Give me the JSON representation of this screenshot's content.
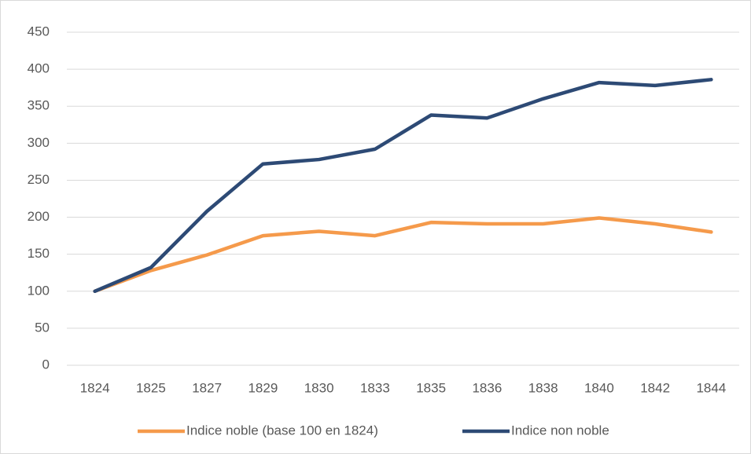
{
  "chart_data": {
    "type": "line",
    "categories": [
      "1824",
      "1825",
      "1827",
      "1829",
      "1830",
      "1833",
      "1835",
      "1836",
      "1838",
      "1840",
      "1842",
      "1844"
    ],
    "series": [
      {
        "name": "Indice noble (base 100 en 1824)",
        "color": "#f59a4b",
        "values": [
          100,
          128,
          149,
          175,
          181,
          175,
          193,
          191,
          191,
          199,
          191,
          180
        ]
      },
      {
        "name": "Indice non noble",
        "color": "#2d4a75",
        "values": [
          100,
          132,
          208,
          272,
          278,
          292,
          338,
          334,
          360,
          382,
          378,
          386
        ]
      }
    ],
    "ylim": [
      0,
      450
    ],
    "yticks": [
      0,
      50,
      100,
      150,
      200,
      250,
      300,
      350,
      400,
      450
    ],
    "grid": true,
    "legend": "bottom"
  }
}
